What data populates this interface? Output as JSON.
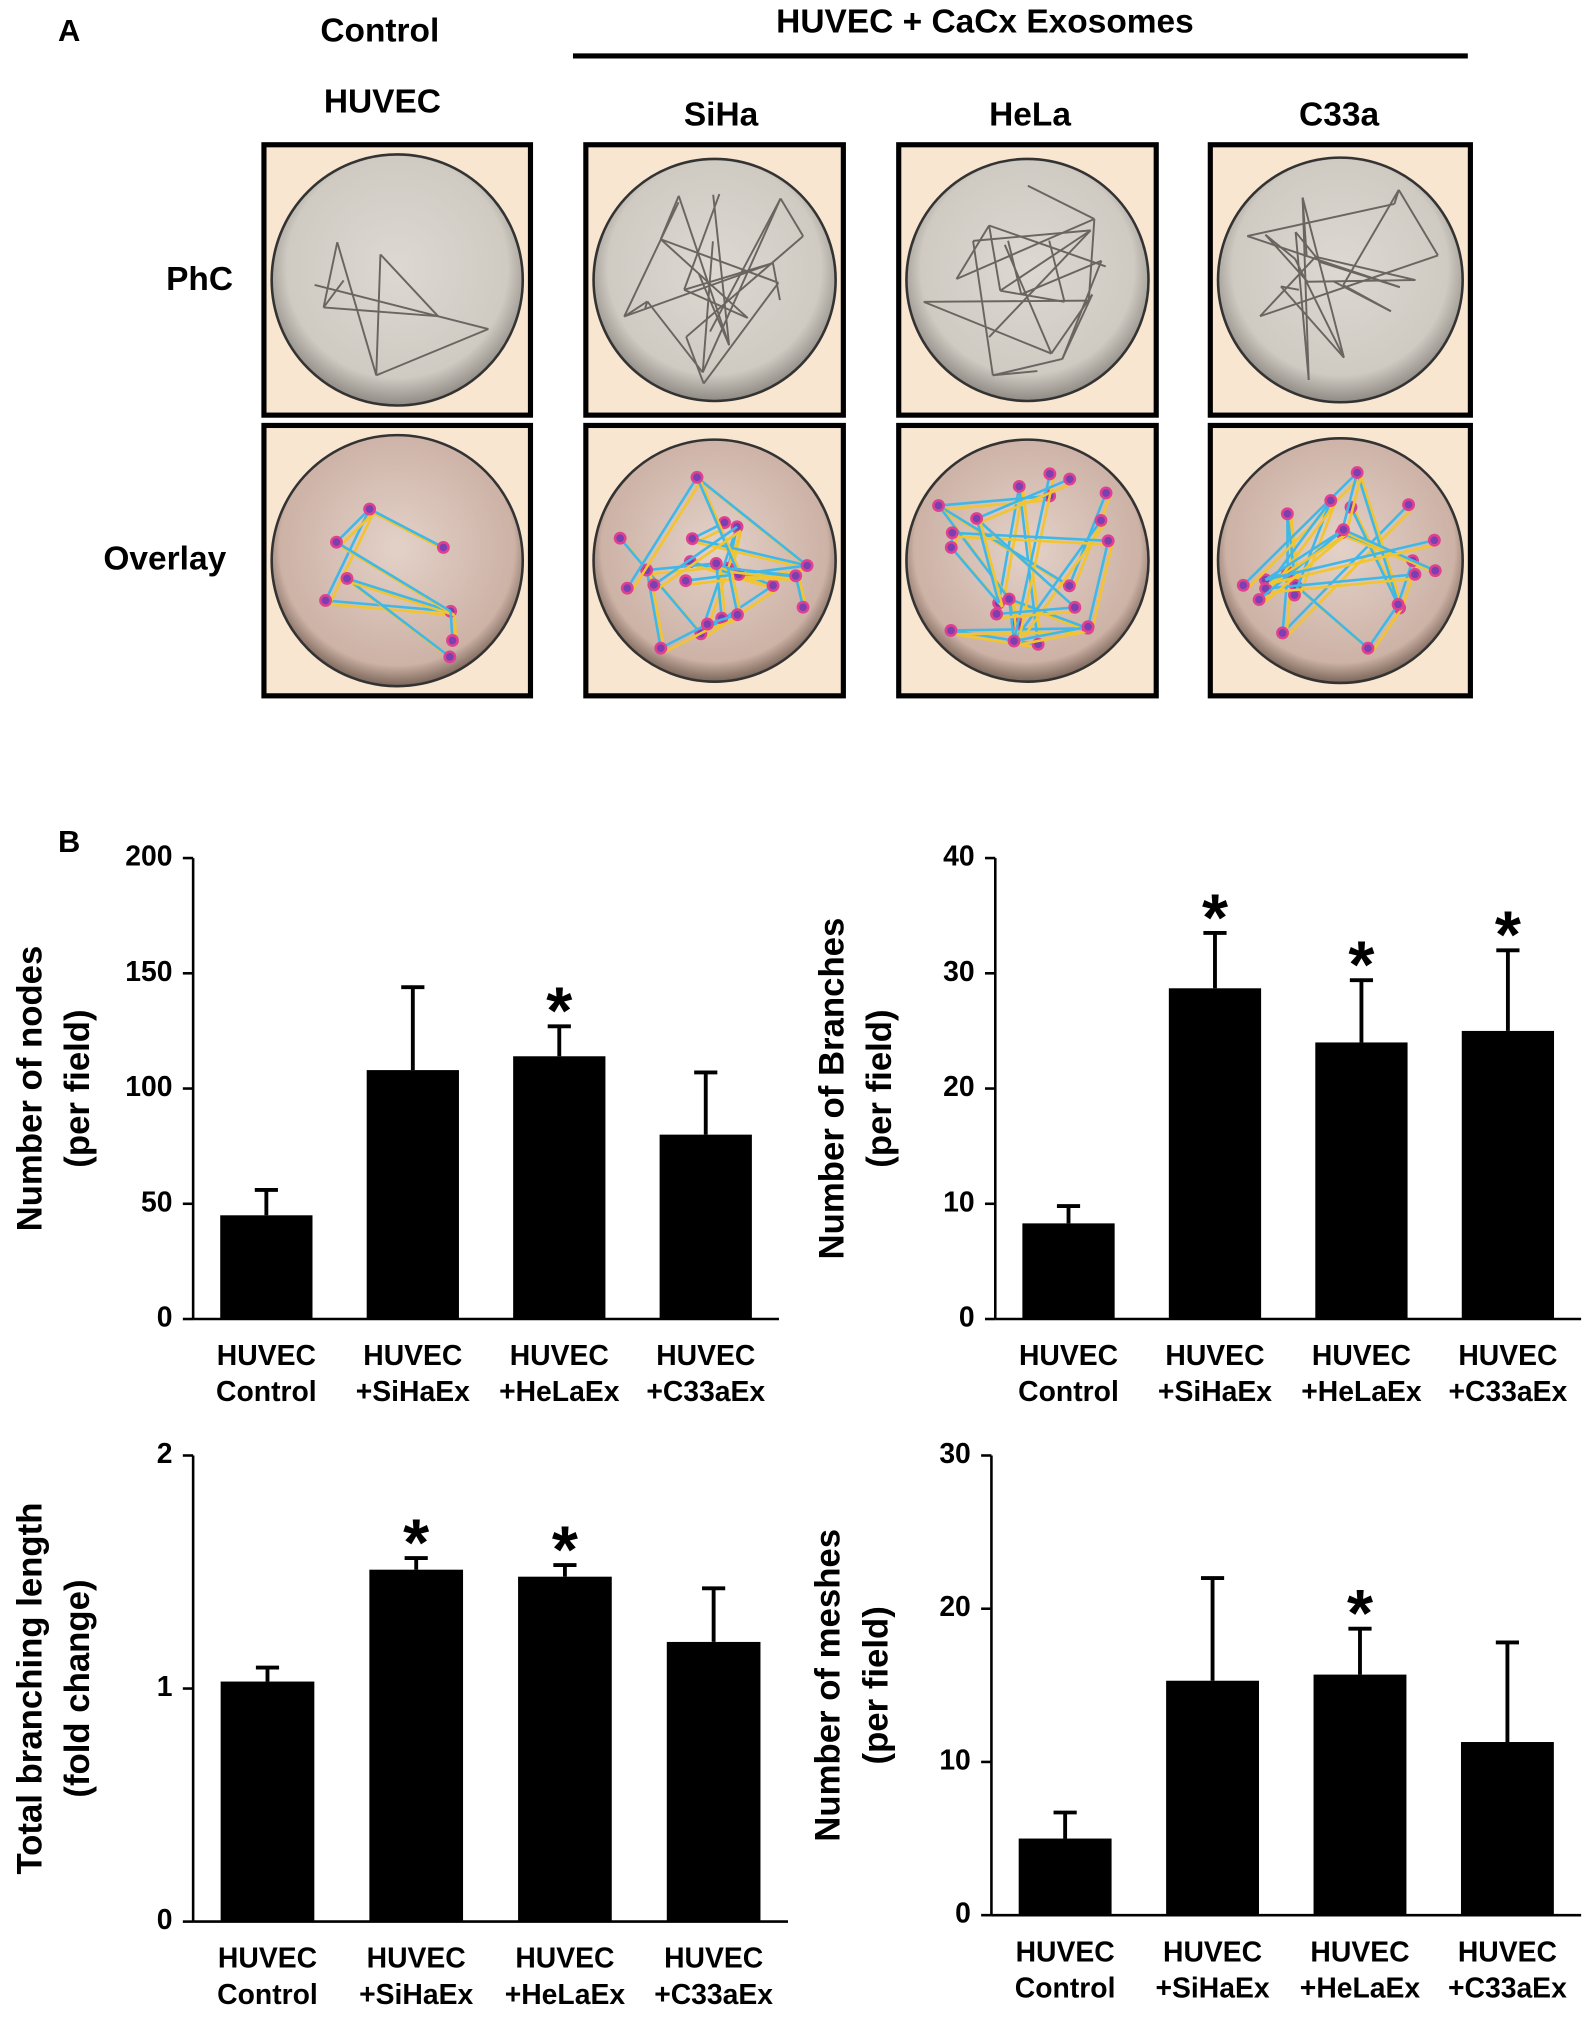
{
  "panel_a": {
    "label": "A",
    "control_label": [
      "Control",
      "HUVEC"
    ],
    "group_title": "HUVEC + CaCx Exosomes",
    "groups": [
      "SiHa",
      "HeLa",
      "C33a"
    ],
    "rows": [
      "PhC",
      "Overlay"
    ]
  },
  "panel_b": {
    "label": "B"
  },
  "chart_data": [
    {
      "type": "bar",
      "ylabel": [
        "Number of nodes",
        "(per field)"
      ],
      "categories": [
        [
          "HUVEC",
          "Control"
        ],
        [
          "HUVEC",
          "+SiHaEx"
        ],
        [
          "HUVEC",
          "+HeLaEx"
        ],
        [
          "HUVEC",
          "+C33aEx"
        ]
      ],
      "values": [
        45,
        108,
        114,
        80
      ],
      "errors": [
        11,
        36,
        13,
        27
      ],
      "significant": [
        false,
        false,
        true,
        false
      ],
      "significance_mark": "*",
      "color": "#000000",
      "ylim": [
        0,
        200
      ],
      "yticks": [
        0,
        50,
        100,
        150,
        200
      ]
    },
    {
      "type": "bar",
      "ylabel": [
        "Number of Branches",
        "(per field)"
      ],
      "categories": [
        [
          "HUVEC",
          "Control"
        ],
        [
          "HUVEC",
          "+SiHaEx"
        ],
        [
          "HUVEC",
          "+HeLaEx"
        ],
        [
          "HUVEC",
          "+C33aEx"
        ]
      ],
      "values": [
        8.3,
        28.7,
        24,
        25
      ],
      "errors": [
        1.5,
        4.8,
        5.4,
        7
      ],
      "significant": [
        false,
        true,
        true,
        true
      ],
      "significance_mark": "*",
      "color": "#000000",
      "ylim": [
        0,
        40
      ],
      "yticks": [
        0,
        10,
        20,
        30,
        40
      ]
    },
    {
      "type": "bar",
      "ylabel": [
        "Total branching length",
        "(fold change)"
      ],
      "categories": [
        [
          "HUVEC",
          "Control"
        ],
        [
          "HUVEC",
          "+SiHaEx"
        ],
        [
          "HUVEC",
          "+HeLaEx"
        ],
        [
          "HUVEC",
          "+C33aEx"
        ]
      ],
      "values": [
        1.03,
        1.51,
        1.48,
        1.2
      ],
      "errors": [
        0.06,
        0.05,
        0.05,
        0.23
      ],
      "significant": [
        false,
        true,
        true,
        false
      ],
      "significance_mark": "*",
      "color": "#000000",
      "ylim": [
        0,
        2
      ],
      "yticks": [
        0,
        1,
        2
      ]
    },
    {
      "type": "bar",
      "ylabel": [
        "Number of meshes",
        "(per field)"
      ],
      "categories": [
        [
          "HUVEC",
          "Control"
        ],
        [
          "HUVEC",
          "+SiHaEx"
        ],
        [
          "HUVEC",
          "+HeLaEx"
        ],
        [
          "HUVEC",
          "+C33aEx"
        ]
      ],
      "values": [
        5,
        15.3,
        15.7,
        11.3
      ],
      "errors": [
        1.7,
        6.7,
        3,
        6.5
      ],
      "significant": [
        false,
        false,
        true,
        false
      ],
      "significance_mark": "*",
      "color": "#000000",
      "ylim": [
        0,
        30
      ],
      "yticks": [
        0,
        10,
        20,
        30
      ]
    }
  ]
}
